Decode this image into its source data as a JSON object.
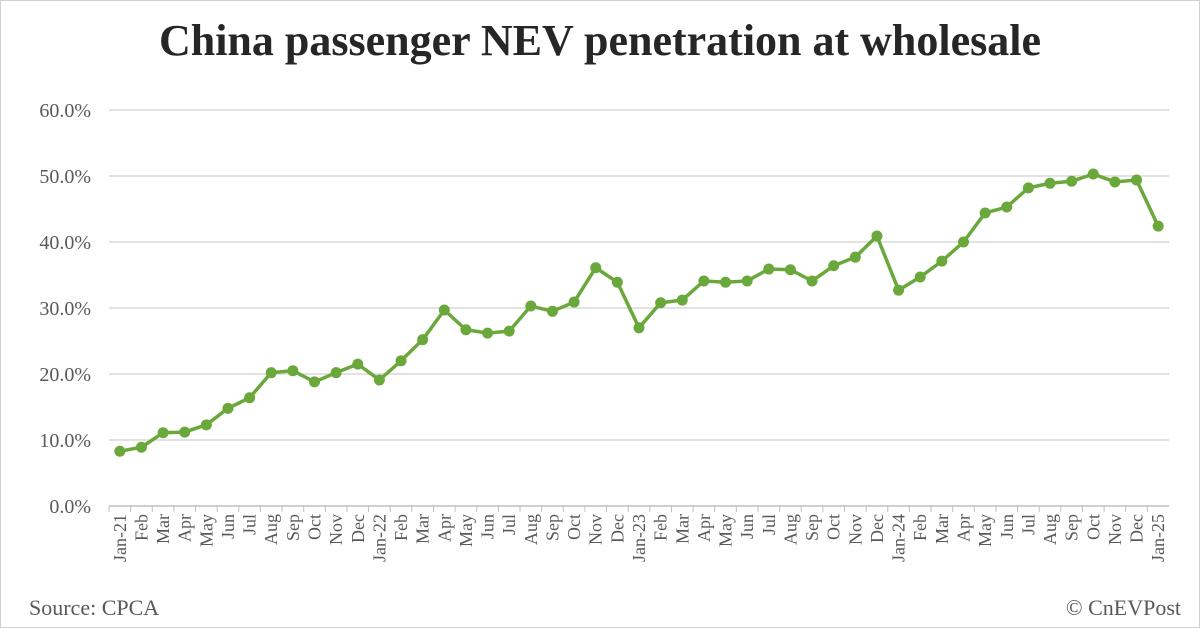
{
  "chart_data": {
    "type": "line",
    "title": "China passenger NEV penetration at wholesale",
    "xlabel": "",
    "ylabel": "",
    "ylim": [
      0,
      60
    ],
    "yticks": [
      "0.0%",
      "10.0%",
      "20.0%",
      "30.0%",
      "40.0%",
      "50.0%",
      "60.0%"
    ],
    "grid": true,
    "color": "#6aa83c",
    "categories": [
      "Jan-21",
      "Feb",
      "Mar",
      "Apr",
      "May",
      "Jun",
      "Jul",
      "Aug",
      "Sep",
      "Oct",
      "Nov",
      "Dec",
      "Jan-22",
      "Feb",
      "Mar",
      "Apr",
      "May",
      "Jun",
      "Jul",
      "Aug",
      "Sep",
      "Oct",
      "Nov",
      "Dec",
      "Jan-23",
      "Feb",
      "Mar",
      "Apr",
      "May",
      "Jun",
      "Jul",
      "Aug",
      "Sep",
      "Oct",
      "Nov",
      "Dec",
      "Jan-24",
      "Feb",
      "Mar",
      "Apr",
      "May",
      "Jun",
      "Jul",
      "Aug",
      "Sep",
      "Oct",
      "Nov",
      "Dec",
      "Jan-25"
    ],
    "series": [
      {
        "name": "NEV penetration",
        "values": [
          8.3,
          8.9,
          11.1,
          11.2,
          12.3,
          14.8,
          16.4,
          20.2,
          20.5,
          18.8,
          20.2,
          21.5,
          19.1,
          22.0,
          25.2,
          29.7,
          26.7,
          26.2,
          26.5,
          30.3,
          29.5,
          30.9,
          36.1,
          33.9,
          27.0,
          30.8,
          31.2,
          34.1,
          33.9,
          34.1,
          35.9,
          35.8,
          34.1,
          36.4,
          37.7,
          40.9,
          32.7,
          34.7,
          37.1,
          40.0,
          44.4,
          45.3,
          48.2,
          48.9,
          49.2,
          50.3,
          49.1,
          49.4,
          42.4
        ]
      }
    ]
  },
  "footer": {
    "source": "Source: CPCA",
    "credit": "© CnEVPost"
  }
}
